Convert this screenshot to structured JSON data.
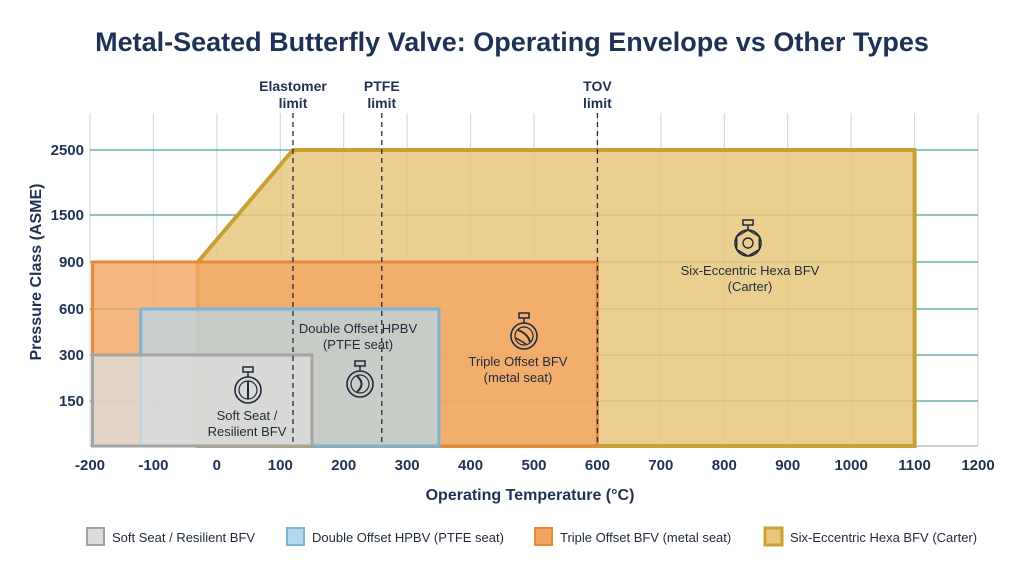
{
  "chart_data": {
    "type": "area",
    "title": "Metal-Seated Butterfly Valve: Operating Envelope vs Other Types",
    "xlabel": "Operating Temperature (°C)",
    "ylabel": "Pressure Class (ASME)",
    "xlim": [
      -200,
      1200
    ],
    "x_ticks": [
      -200,
      -100,
      0,
      100,
      200,
      300,
      400,
      500,
      600,
      700,
      800,
      900,
      1000,
      1100,
      1200
    ],
    "y_ticks": [
      150,
      300,
      600,
      900,
      1500,
      2500
    ],
    "y_scale": "ordinal pressure classes",
    "grid": true,
    "limits": [
      {
        "line1": "Elastomer",
        "line2": "limit",
        "x": 120
      },
      {
        "line1": "PTFE",
        "line2": "limit",
        "x": 260
      },
      {
        "line1": "TOV",
        "line2": "limit",
        "x": 600
      }
    ],
    "regions": [
      {
        "name": "Six-Eccentric Hexa BFV (Carter)",
        "label_lines": [
          "Six-Eccentric Hexa BFV",
          "(Carter)"
        ],
        "legend": "Six-Eccentric Hexa BFV (Carter)",
        "icon": "hexa-valve-icon",
        "fill": "#e8c77c",
        "stroke": "#c9a036",
        "outline": [
          [
            -30,
            0
          ],
          [
            -30,
            900
          ],
          [
            120,
            2500
          ],
          [
            1100,
            2500
          ],
          [
            1100,
            0
          ]
        ],
        "label_at": [
          820,
          1250
        ]
      },
      {
        "name": "Triple Offset BFV (metal seat)",
        "label_lines": [
          "Triple Offset BFV",
          "(metal seat)"
        ],
        "legend": "Triple Offset BFV (metal seat)",
        "icon": "triple-offset-valve-icon",
        "fill": "#f2a563",
        "stroke": "#e6893b",
        "outline": [
          [
            -196,
            0
          ],
          [
            -196,
            900
          ],
          [
            600,
            900
          ],
          [
            600,
            0
          ]
        ],
        "label_at": [
          500,
          450
        ]
      },
      {
        "name": "Double Offset HPBV (PTFE seat)",
        "label_lines": [
          "Double Offset HPBV",
          "(PTFE seat)"
        ],
        "legend": "Double Offset HPBV (PTFE seat)",
        "icon": "double-offset-valve-icon",
        "fill": "#b5d8ec",
        "stroke": "#7bb5d8",
        "outline": [
          [
            -120,
            0
          ],
          [
            -120,
            600
          ],
          [
            350,
            600
          ],
          [
            350,
            0
          ]
        ],
        "label_at": [
          225,
          450
        ]
      },
      {
        "name": "Soft Seat / Resilient BFV",
        "label_lines": [
          "Soft Seat /",
          "Resilient BFV"
        ],
        "legend": "Soft Seat / Resilient BFV",
        "icon": "soft-seat-valve-icon",
        "fill": "#dddddb",
        "stroke": "#a3a3a3",
        "outline": [
          [
            -196,
            0
          ],
          [
            -196,
            300
          ],
          [
            150,
            300
          ],
          [
            150,
            0
          ]
        ],
        "label_at": [
          50,
          150
        ]
      }
    ]
  }
}
